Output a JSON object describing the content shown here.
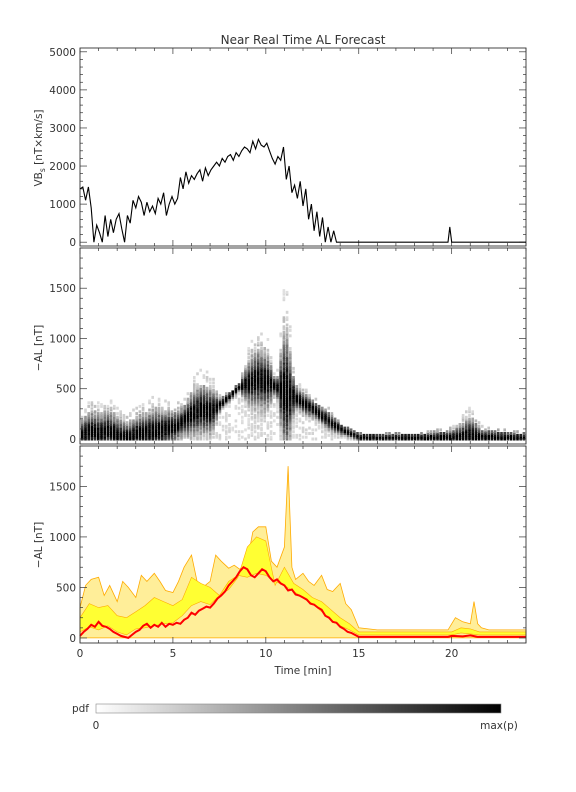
{
  "title": "Near Real Time AL Forecast",
  "xlabel": "Time [min]",
  "colorbar": {
    "label": "pdf",
    "min_label": "0",
    "max_label": "max(p)"
  },
  "colors": {
    "axis": "#333333",
    "fill": "#ffff33",
    "band": "#ffee99",
    "edge": "#ffaa00",
    "median": "#ff0000",
    "trace": "#000000"
  },
  "chart_data": [
    {
      "type": "line",
      "title": "Near Real Time AL Forecast",
      "ylabel_main": "VB",
      "ylabel_sub": "s",
      "ylabel_tail": " [nT×km/s]",
      "xlim": [
        0,
        24
      ],
      "ylim": [
        -100,
        5100
      ],
      "yticks": [
        0,
        1000,
        2000,
        3000,
        4000,
        5000
      ],
      "series": [
        {
          "x": [
            0,
            0.15,
            0.3,
            0.45,
            0.6,
            0.75,
            0.9,
            1.05,
            1.2,
            1.35,
            1.5,
            1.65,
            1.8,
            1.95,
            2.1,
            2.25,
            2.4,
            2.55,
            2.7,
            2.85,
            3.0,
            3.15,
            3.3,
            3.45,
            3.6,
            3.75,
            3.9,
            4.05,
            4.2,
            4.35,
            4.5,
            4.65,
            4.8,
            4.95,
            5.1,
            5.25,
            5.4,
            5.55,
            5.7,
            5.85,
            6.0,
            6.15,
            6.3,
            6.45,
            6.6,
            6.75,
            6.9,
            7.05,
            7.2,
            7.35,
            7.5,
            7.65,
            7.8,
            7.95,
            8.1,
            8.25,
            8.4,
            8.55,
            8.7,
            8.85,
            9.0,
            9.15,
            9.3,
            9.45,
            9.6,
            9.75,
            9.9,
            10.05,
            10.2,
            10.35,
            10.5,
            10.65,
            10.8,
            10.95,
            11.1,
            11.25,
            11.4,
            11.55,
            11.7,
            11.85,
            12.0,
            12.15,
            12.3,
            12.45,
            12.6,
            12.75,
            12.9,
            13.05,
            13.2,
            13.35,
            13.5,
            13.65,
            13.8,
            14.0,
            16.0,
            19.8,
            19.9,
            20.0,
            20.1,
            22.0,
            24.0
          ],
          "y": [
            1400,
            1450,
            1100,
            1450,
            900,
            0,
            450,
            250,
            0,
            700,
            150,
            600,
            250,
            600,
            750,
            350,
            0,
            700,
            500,
            1100,
            900,
            1200,
            1050,
            700,
            1050,
            800,
            950,
            750,
            1150,
            1000,
            1300,
            700,
            1000,
            1200,
            1000,
            1150,
            1700,
            1400,
            1850,
            1550,
            1750,
            1650,
            1800,
            1900,
            1600,
            1950,
            1750,
            1900,
            2000,
            2100,
            2000,
            2200,
            2100,
            2250,
            2300,
            2150,
            2350,
            2250,
            2400,
            2500,
            2450,
            2350,
            2650,
            2450,
            2700,
            2550,
            2500,
            2600,
            2400,
            2200,
            2050,
            2250,
            2150,
            2500,
            1650,
            2000,
            1300,
            1500,
            1150,
            1600,
            950,
            1400,
            600,
            1000,
            300,
            800,
            150,
            650,
            0,
            400,
            0,
            300,
            0,
            0,
            0,
            0,
            400,
            0,
            0,
            0,
            0
          ]
        }
      ]
    },
    {
      "type": "heatmap",
      "ylabel": "−AL [nT]",
      "xlim": [
        0,
        24
      ],
      "ylim": [
        -50,
        1900
      ],
      "yticks": [
        0,
        500,
        1000,
        1500
      ],
      "value_scale": "pdf 0 to max(p)",
      "peak_x": [
        0,
        0.5,
        1,
        1.5,
        2,
        2.5,
        3,
        3.5,
        4,
        4.5,
        5,
        5.5,
        6,
        6.5,
        7,
        7.5,
        8,
        8.5,
        9,
        9.5,
        10,
        10.5,
        11,
        11.5,
        12,
        12.5,
        13,
        13.5,
        14,
        14.5,
        15,
        16,
        18,
        20,
        21,
        21.5,
        24
      ],
      "peak_y": [
        40,
        80,
        60,
        90,
        40,
        20,
        60,
        70,
        80,
        100,
        120,
        180,
        260,
        300,
        280,
        350,
        430,
        520,
        560,
        600,
        580,
        520,
        470,
        420,
        360,
        300,
        230,
        160,
        100,
        60,
        20,
        15,
        15,
        20,
        30,
        20,
        15
      ],
      "spread_y": [
        250,
        420,
        350,
        400,
        300,
        250,
        320,
        380,
        430,
        400,
        360,
        400,
        620,
        700,
        650,
        420,
        480,
        560,
        900,
        1100,
        1050,
        560,
        1700,
        580,
        520,
        420,
        350,
        280,
        160,
        100,
        60,
        60,
        60,
        120,
        350,
        130,
        60
      ]
    },
    {
      "type": "area",
      "ylabel": "−AL [nT]",
      "xlabel": "Time [min]",
      "xlim": [
        0,
        24
      ],
      "ylim": [
        -50,
        1900
      ],
      "xticks": [
        0,
        5,
        10,
        15,
        20
      ],
      "yticks": [
        0,
        500,
        1000,
        1500
      ],
      "series": [
        {
          "role": "outer-upper",
          "x": [
            0,
            0.3,
            0.6,
            1,
            1.3,
            1.6,
            2,
            2.3,
            2.6,
            3,
            3.3,
            3.6,
            4,
            4.3,
            4.6,
            5,
            5.3,
            5.6,
            6,
            6.3,
            6.6,
            7,
            7.3,
            7.6,
            8,
            8.3,
            8.6,
            9,
            9.3,
            9.6,
            10,
            10.3,
            10.6,
            11,
            11.2,
            11.4,
            11.6,
            12,
            12.3,
            12.6,
            13,
            13.3,
            13.6,
            14,
            14.3,
            14.6,
            15,
            16,
            19.8,
            20.2,
            20.6,
            21,
            21.2,
            21.4,
            21.6,
            22,
            24
          ],
          "y": [
            300,
            520,
            580,
            600,
            420,
            520,
            360,
            560,
            500,
            400,
            620,
            560,
            640,
            560,
            470,
            450,
            560,
            700,
            820,
            560,
            500,
            560,
            820,
            760,
            690,
            720,
            680,
            760,
            1050,
            1100,
            1100,
            760,
            700,
            900,
            1700,
            700,
            580,
            640,
            560,
            520,
            620,
            480,
            460,
            540,
            340,
            280,
            100,
            80,
            80,
            200,
            160,
            140,
            360,
            140,
            100,
            80,
            80
          ]
        },
        {
          "role": "inner-upper",
          "x": [
            0,
            0.5,
            1,
            1.5,
            2,
            2.5,
            3,
            3.5,
            4,
            4.5,
            5,
            5.5,
            6,
            6.5,
            7,
            7.5,
            8,
            8.5,
            9,
            9.5,
            10,
            10.5,
            11,
            11.5,
            12,
            12.5,
            13,
            13.5,
            14,
            14.5,
            15,
            20,
            20.5,
            21,
            21.5,
            24
          ],
          "y": [
            200,
            340,
            300,
            320,
            220,
            200,
            260,
            320,
            400,
            360,
            320,
            380,
            600,
            540,
            500,
            420,
            480,
            600,
            900,
            1000,
            960,
            520,
            700,
            540,
            480,
            400,
            360,
            280,
            200,
            140,
            60,
            60,
            100,
            90,
            60,
            60
          ]
        },
        {
          "role": "inner-lower",
          "x": [
            0,
            0.5,
            1,
            1.5,
            2,
            2.5,
            3,
            3.5,
            4,
            4.5,
            5,
            5.5,
            6,
            6.5,
            7,
            7.5,
            8,
            8.5,
            9,
            9.5,
            10,
            10.5,
            11,
            11.5,
            12,
            12.5,
            13,
            13.5,
            14,
            14.5,
            15,
            20,
            20.5,
            21,
            21.5,
            24
          ],
          "y": [
            60,
            110,
            80,
            120,
            60,
            30,
            90,
            100,
            120,
            140,
            150,
            220,
            320,
            360,
            330,
            420,
            560,
            620,
            600,
            640,
            620,
            560,
            520,
            460,
            400,
            340,
            260,
            180,
            120,
            80,
            30,
            30,
            50,
            40,
            30,
            30
          ]
        },
        {
          "role": "median",
          "name": "",
          "x": [
            0,
            0.2,
            0.4,
            0.6,
            0.8,
            1,
            1.2,
            1.4,
            1.6,
            1.8,
            2,
            2.2,
            2.4,
            2.6,
            2.8,
            3,
            3.2,
            3.4,
            3.6,
            3.8,
            4,
            4.2,
            4.4,
            4.6,
            4.8,
            5,
            5.2,
            5.4,
            5.6,
            5.8,
            6,
            6.2,
            6.4,
            6.6,
            6.8,
            7,
            7.2,
            7.4,
            7.6,
            7.8,
            8,
            8.2,
            8.4,
            8.6,
            8.8,
            9,
            9.2,
            9.4,
            9.6,
            9.8,
            10,
            10.2,
            10.4,
            10.6,
            10.8,
            11,
            11.2,
            11.4,
            11.6,
            11.8,
            12,
            12.2,
            12.4,
            12.6,
            12.8,
            13,
            13.2,
            13.4,
            13.6,
            13.8,
            14,
            14.2,
            14.4,
            14.6,
            14.8,
            15,
            19.8,
            20,
            20.6,
            21,
            21.4,
            24
          ],
          "y": [
            20,
            60,
            90,
            130,
            110,
            160,
            120,
            110,
            90,
            60,
            40,
            20,
            10,
            0,
            30,
            60,
            80,
            120,
            140,
            100,
            130,
            110,
            150,
            110,
            140,
            130,
            150,
            140,
            180,
            200,
            250,
            230,
            270,
            290,
            310,
            300,
            340,
            390,
            420,
            460,
            520,
            560,
            600,
            660,
            700,
            680,
            620,
            600,
            640,
            680,
            660,
            600,
            560,
            580,
            540,
            520,
            470,
            480,
            430,
            420,
            400,
            380,
            340,
            330,
            300,
            280,
            220,
            200,
            160,
            150,
            110,
            90,
            60,
            50,
            30,
            10,
            10,
            20,
            15,
            25,
            10,
            10
          ]
        }
      ]
    }
  ]
}
